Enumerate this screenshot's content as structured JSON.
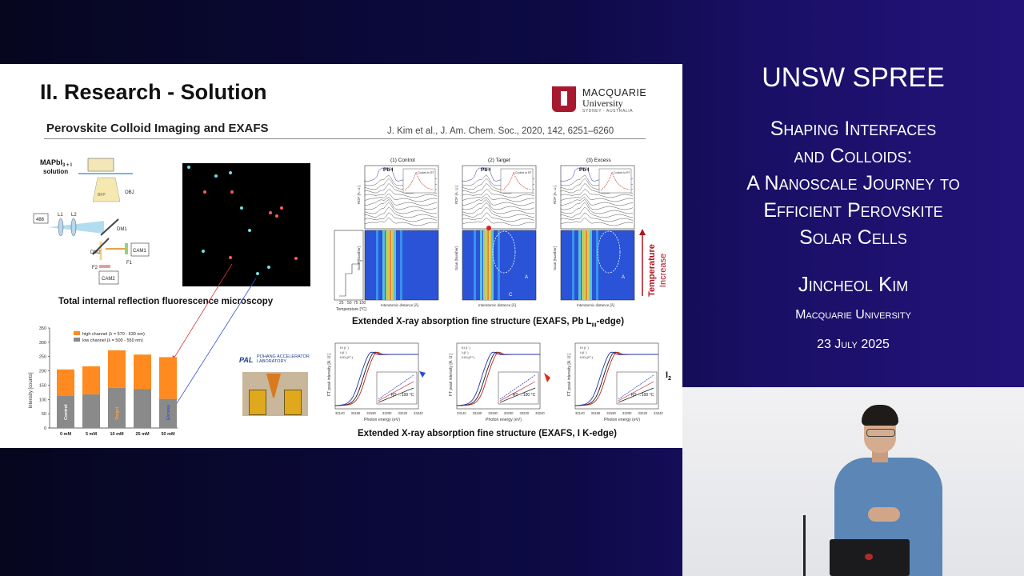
{
  "slide": {
    "title": "II. Research - Solution",
    "subtitle": "Perovskite Colloid Imaging and EXAFS",
    "citation": "J. Kim et al., J. Am. Chem. Soc., 2020, 142, 6251–6260",
    "logo": {
      "name": "MACQUARIE",
      "sub": "University",
      "tag": "SYDNEY · AUSTRALIA"
    },
    "tirf": {
      "solution_label_1": "MAPbI",
      "solution_label_2": "3 + I",
      "solution_label_3": "solution",
      "labels": {
        "laser": "488",
        "l1": "L1",
        "l2": "L2",
        "obj": "OBJ",
        "bfp": "BFP",
        "dm1": "DM1",
        "dm2": "DM2",
        "f1": "F1",
        "f2": "F2",
        "cam1": "CAM1",
        "cam2": "CAM2"
      },
      "caption": "Total internal reflection fluorescence microscopy"
    },
    "bar_chart": {
      "legend_high": "high channel (λ = 570 - 630 nm)",
      "legend_low": "low channel (λ = 500 - 550 nm)",
      "ylabel": "Intensity [counts]",
      "yticks": [
        "0",
        "50",
        "100",
        "150",
        "200",
        "250",
        "300",
        "350"
      ],
      "bar_labels": [
        "Control",
        "Target",
        "Excess"
      ]
    },
    "exafs_pb": {
      "panels": [
        "(1) Control",
        "(2) Target",
        "(3) Excess"
      ],
      "peak_label": "Pb-I",
      "legend": "Cooled to RT",
      "rdf_label": "RDF [A. U.]",
      "scan_label": "Scan [Number]",
      "xlabel": "Interatomic distance [Å]",
      "temp_label": "Temperature [°C]",
      "temp_ticks": [
        "25",
        "50",
        "75",
        "100"
      ],
      "side_label_1": "Temperature",
      "side_label_2": "Increase",
      "annot_a": "A",
      "annot_c": "C",
      "caption_main": "Extended X-ray absorption fine structure (EXAFS, Pb L",
      "caption_sub": "III",
      "caption_end": "-edge)"
    },
    "exafs_i": {
      "ylabel": "FT peak intensity [A. U.]",
      "xlabel": "Photon energy (eV)",
      "xticks": [
        "33140",
        "33160",
        "33180",
        "33200",
        "33220",
        "33240"
      ],
      "legend": [
        "KI (I⁻)",
        "I₃(I⁻)",
        "KIO₃(I⁵⁺)"
      ],
      "inset_label": "RT →100 °C",
      "i2_label": "I",
      "i2_sub": "2",
      "caption": "Extended X-ray absorption fine structure (EXAFS, I K-edge)"
    },
    "pal": {
      "abbr": "PAL",
      "text": "POHANG ACCELERATOR LABORATORY"
    }
  },
  "chart_data": {
    "type": "bar",
    "title": "",
    "ylabel": "Intensity [counts]",
    "categories": [
      "0 mM",
      "5 mM",
      "10 mM",
      "25 mM",
      "50 mM"
    ],
    "stacked": true,
    "series": [
      {
        "name": "low channel (λ = 500 - 550 nm)",
        "values": [
          112,
          118,
          141,
          137,
          102
        ],
        "color": "#8a8a8a"
      },
      {
        "name": "high channel (λ = 570 - 630 nm)",
        "values": [
          93,
          98,
          131,
          120,
          146
        ],
        "color": "#ff8a1f"
      }
    ],
    "ylim": [
      0,
      350
    ],
    "grid": false,
    "legend": "top-left"
  },
  "panel": {
    "event": "UNSW SPREE",
    "talk_title_lines": [
      "Shaping Interfaces",
      "and Colloids:",
      "A Nanoscale Journey to",
      "Efficient Perovskite",
      "Solar Cells"
    ],
    "speaker": "Jincheol Kim",
    "affiliation": "Macquarie University",
    "date": "23 July 2025"
  },
  "colors": {
    "high": "#ff8a1f",
    "low": "#8a8a8a",
    "arrow": "#b0121e",
    "brand": "#a6192e"
  }
}
